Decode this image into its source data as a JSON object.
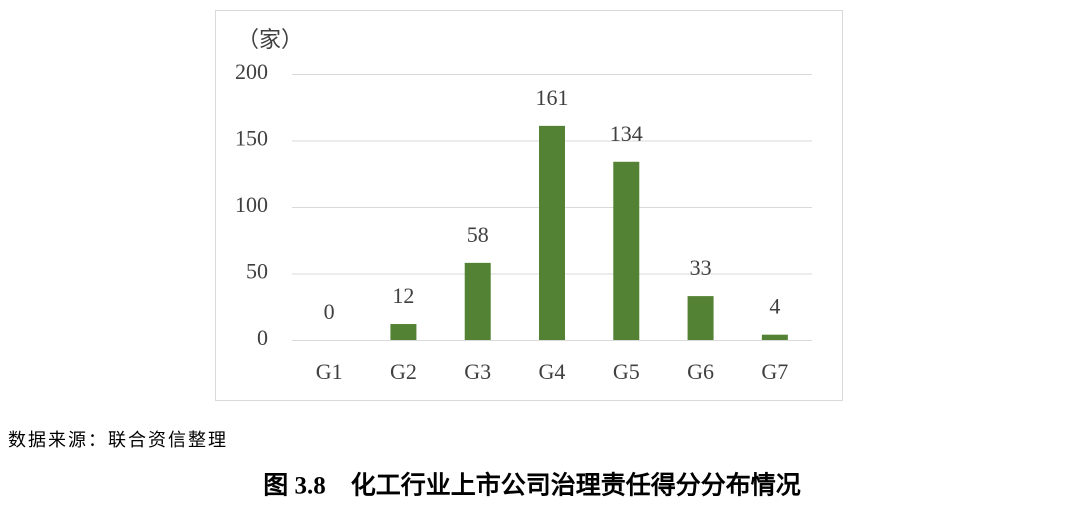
{
  "chart_data": {
    "type": "bar",
    "y_unit": "（家）",
    "categories": [
      "G1",
      "G2",
      "G3",
      "G4",
      "G5",
      "G6",
      "G7"
    ],
    "values": [
      0,
      12,
      58,
      161,
      134,
      33,
      4
    ],
    "color": "#548235",
    "ylim": [
      0,
      200
    ],
    "yticks": [
      0,
      50,
      100,
      150,
      200
    ],
    "grid": true
  },
  "source": "数据来源：联合资信整理",
  "caption": "图 3.8　化工行业上市公司治理责任得分分布情况"
}
